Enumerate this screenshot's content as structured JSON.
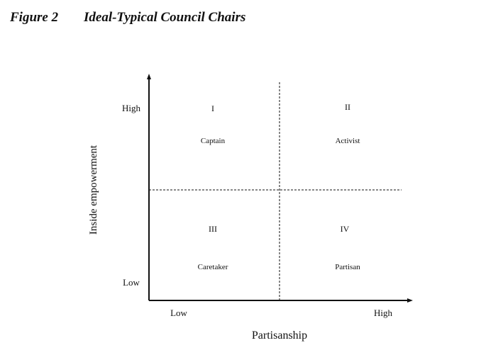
{
  "figure": {
    "label": "Figure 2",
    "title": "Ideal-Typical Council Chairs"
  },
  "axes": {
    "y_label": "Inside empowerment",
    "y_high": "High",
    "y_low": "Low",
    "x_label": "Partisanship",
    "x_low": "Low",
    "x_high": "High"
  },
  "quadrants": [
    {
      "numeral": "I",
      "name": "Captain"
    },
    {
      "numeral": "II",
      "name": "Activist"
    },
    {
      "numeral": "III",
      "name": "Caretaker"
    },
    {
      "numeral": "IV",
      "name": "Partisan"
    }
  ],
  "colors": {
    "ink": "#111111"
  }
}
